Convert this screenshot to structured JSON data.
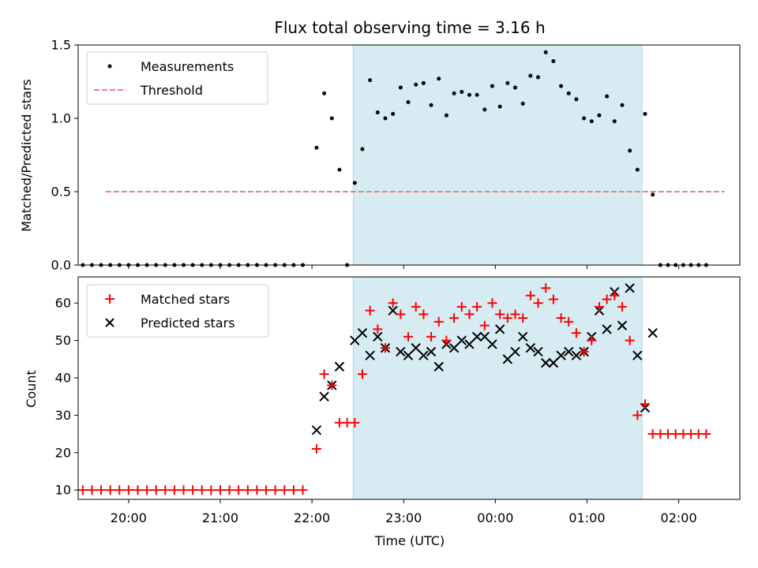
{
  "chart_data": [
    {
      "type": "scatter",
      "title": "Flux total observing time = 3.16 h",
      "ylabel": "Matched/Predicted stars",
      "xlabel": "",
      "ylim": [
        0,
        1.5
      ],
      "yticks": [
        "0.0",
        "0.5",
        "1.0",
        "1.5"
      ],
      "x_range": [
        "19:27",
        "02:40"
      ],
      "shaded_span": [
        "22:27",
        "01:36"
      ],
      "legend_position": "upper-left",
      "series": [
        {
          "name": "Measurements",
          "color": "#000000",
          "marker": "dot",
          "points": [
            [
              "19:30",
              0
            ],
            [
              "19:36",
              0
            ],
            [
              "19:42",
              0
            ],
            [
              "19:48",
              0
            ],
            [
              "19:54",
              0
            ],
            [
              "20:00",
              0
            ],
            [
              "20:06",
              0
            ],
            [
              "20:12",
              0
            ],
            [
              "20:18",
              0
            ],
            [
              "20:24",
              0
            ],
            [
              "20:30",
              0
            ],
            [
              "20:36",
              0
            ],
            [
              "20:42",
              0
            ],
            [
              "20:48",
              0
            ],
            [
              "20:54",
              0
            ],
            [
              "21:00",
              0
            ],
            [
              "21:06",
              0
            ],
            [
              "21:12",
              0
            ],
            [
              "21:18",
              0
            ],
            [
              "21:24",
              0
            ],
            [
              "21:30",
              0
            ],
            [
              "21:36",
              0
            ],
            [
              "21:42",
              0
            ],
            [
              "21:48",
              0
            ],
            [
              "21:54",
              0
            ],
            [
              "22:03",
              0.8
            ],
            [
              "22:08",
              1.17
            ],
            [
              "22:13",
              1.0
            ],
            [
              "22:18",
              0.65
            ],
            [
              "22:23",
              0
            ],
            [
              "22:28",
              0.56
            ],
            [
              "22:33",
              0.79
            ],
            [
              "22:38",
              1.26
            ],
            [
              "22:43",
              1.04
            ],
            [
              "22:48",
              1.0
            ],
            [
              "22:53",
              1.03
            ],
            [
              "22:58",
              1.21
            ],
            [
              "23:03",
              1.11
            ],
            [
              "23:08",
              1.23
            ],
            [
              "23:13",
              1.24
            ],
            [
              "23:18",
              1.09
            ],
            [
              "23:23",
              1.27
            ],
            [
              "23:28",
              1.02
            ],
            [
              "23:33",
              1.17
            ],
            [
              "23:38",
              1.18
            ],
            [
              "23:43",
              1.16
            ],
            [
              "23:48",
              1.16
            ],
            [
              "23:53",
              1.06
            ],
            [
              "23:58",
              1.22
            ],
            [
              "00:03",
              1.08
            ],
            [
              "00:08",
              1.24
            ],
            [
              "00:13",
              1.21
            ],
            [
              "00:18",
              1.1
            ],
            [
              "00:23",
              1.29
            ],
            [
              "00:28",
              1.28
            ],
            [
              "00:33",
              1.45
            ],
            [
              "00:38",
              1.39
            ],
            [
              "00:43",
              1.22
            ],
            [
              "00:48",
              1.17
            ],
            [
              "00:53",
              1.13
            ],
            [
              "00:58",
              1.0
            ],
            [
              "01:03",
              0.98
            ],
            [
              "01:08",
              1.02
            ],
            [
              "01:13",
              1.15
            ],
            [
              "01:18",
              0.98
            ],
            [
              "01:23",
              1.09
            ],
            [
              "01:28",
              0.78
            ],
            [
              "01:33",
              0.65
            ],
            [
              "01:38",
              1.03
            ],
            [
              "01:43",
              0.48
            ],
            [
              "01:48",
              0
            ],
            [
              "01:53",
              0
            ],
            [
              "01:58",
              0
            ],
            [
              "02:03",
              0
            ],
            [
              "02:08",
              0
            ],
            [
              "02:13",
              0
            ],
            [
              "02:18",
              0
            ]
          ]
        },
        {
          "name": "Threshold",
          "color": "#f08080",
          "style": "dashed",
          "points": [
            [
              "19:45",
              0.5
            ],
            [
              "02:30",
              0.5
            ]
          ]
        }
      ]
    },
    {
      "type": "scatter",
      "title": "",
      "ylabel": "Count",
      "xlabel": "Time (UTC)",
      "ylim": [
        7.5,
        67
      ],
      "yticks": [
        "10",
        "20",
        "30",
        "40",
        "50",
        "60"
      ],
      "xticks": [
        "20:00",
        "21:00",
        "22:00",
        "23:00",
        "00:00",
        "01:00",
        "02:00"
      ],
      "x_range": [
        "19:27",
        "02:40"
      ],
      "shaded_span": [
        "22:27",
        "01:36"
      ],
      "legend_position": "upper-left",
      "series": [
        {
          "name": "Matched stars",
          "color": "#ff0000",
          "marker": "plus",
          "points": [
            [
              "19:30",
              10
            ],
            [
              "19:36",
              10
            ],
            [
              "19:42",
              10
            ],
            [
              "19:48",
              10
            ],
            [
              "19:54",
              10
            ],
            [
              "20:00",
              10
            ],
            [
              "20:06",
              10
            ],
            [
              "20:12",
              10
            ],
            [
              "20:18",
              10
            ],
            [
              "20:24",
              10
            ],
            [
              "20:30",
              10
            ],
            [
              "20:36",
              10
            ],
            [
              "20:42",
              10
            ],
            [
              "20:48",
              10
            ],
            [
              "20:54",
              10
            ],
            [
              "21:00",
              10
            ],
            [
              "21:06",
              10
            ],
            [
              "21:12",
              10
            ],
            [
              "21:18",
              10
            ],
            [
              "21:24",
              10
            ],
            [
              "21:30",
              10
            ],
            [
              "21:36",
              10
            ],
            [
              "21:42",
              10
            ],
            [
              "21:48",
              10
            ],
            [
              "21:54",
              10
            ],
            [
              "22:03",
              21
            ],
            [
              "22:08",
              41
            ],
            [
              "22:13",
              38
            ],
            [
              "22:18",
              28
            ],
            [
              "22:23",
              28
            ],
            [
              "22:28",
              28
            ],
            [
              "22:33",
              41
            ],
            [
              "22:38",
              58
            ],
            [
              "22:43",
              53
            ],
            [
              "22:48",
              48
            ],
            [
              "22:53",
              60
            ],
            [
              "22:58",
              57
            ],
            [
              "23:03",
              51
            ],
            [
              "23:08",
              59
            ],
            [
              "23:13",
              57
            ],
            [
              "23:18",
              51
            ],
            [
              "23:23",
              55
            ],
            [
              "23:28",
              50
            ],
            [
              "23:33",
              56
            ],
            [
              "23:38",
              59
            ],
            [
              "23:43",
              57
            ],
            [
              "23:48",
              59
            ],
            [
              "23:53",
              54
            ],
            [
              "23:58",
              60
            ],
            [
              "00:03",
              57
            ],
            [
              "00:08",
              56
            ],
            [
              "00:13",
              57
            ],
            [
              "00:18",
              56
            ],
            [
              "00:23",
              62
            ],
            [
              "00:28",
              60
            ],
            [
              "00:33",
              64
            ],
            [
              "00:38",
              61
            ],
            [
              "00:43",
              56
            ],
            [
              "00:48",
              55
            ],
            [
              "00:53",
              52
            ],
            [
              "00:58",
              47
            ],
            [
              "01:03",
              50
            ],
            [
              "01:08",
              59
            ],
            [
              "01:13",
              61
            ],
            [
              "01:18",
              62
            ],
            [
              "01:23",
              59
            ],
            [
              "01:28",
              50
            ],
            [
              "01:33",
              30
            ],
            [
              "01:38",
              33
            ],
            [
              "01:43",
              25
            ],
            [
              "01:48",
              25
            ],
            [
              "01:53",
              25
            ],
            [
              "01:58",
              25
            ],
            [
              "02:03",
              25
            ],
            [
              "02:08",
              25
            ],
            [
              "02:13",
              25
            ],
            [
              "02:18",
              25
            ]
          ]
        },
        {
          "name": "Predicted stars",
          "color": "#000000",
          "marker": "x",
          "points": [
            [
              "22:03",
              26
            ],
            [
              "22:08",
              35
            ],
            [
              "22:13",
              38
            ],
            [
              "22:18",
              43
            ],
            [
              "22:28",
              50
            ],
            [
              "22:33",
              52
            ],
            [
              "22:38",
              46
            ],
            [
              "22:43",
              51
            ],
            [
              "22:48",
              48
            ],
            [
              "22:53",
              58
            ],
            [
              "22:58",
              47
            ],
            [
              "23:03",
              46
            ],
            [
              "23:08",
              48
            ],
            [
              "23:13",
              46
            ],
            [
              "23:18",
              47
            ],
            [
              "23:23",
              43
            ],
            [
              "23:28",
              49
            ],
            [
              "23:33",
              48
            ],
            [
              "23:38",
              50
            ],
            [
              "23:43",
              49
            ],
            [
              "23:48",
              51
            ],
            [
              "23:53",
              51
            ],
            [
              "23:58",
              49
            ],
            [
              "00:03",
              53
            ],
            [
              "00:08",
              45
            ],
            [
              "00:13",
              47
            ],
            [
              "00:18",
              51
            ],
            [
              "00:23",
              48
            ],
            [
              "00:28",
              47
            ],
            [
              "00:33",
              44
            ],
            [
              "00:38",
              44
            ],
            [
              "00:43",
              46
            ],
            [
              "00:48",
              47
            ],
            [
              "00:53",
              46
            ],
            [
              "00:58",
              47
            ],
            [
              "01:03",
              51
            ],
            [
              "01:08",
              58
            ],
            [
              "01:13",
              53
            ],
            [
              "01:18",
              63
            ],
            [
              "01:23",
              54
            ],
            [
              "01:28",
              64
            ],
            [
              "01:33",
              46
            ],
            [
              "01:38",
              32
            ],
            [
              "01:43",
              52
            ]
          ]
        }
      ]
    }
  ]
}
